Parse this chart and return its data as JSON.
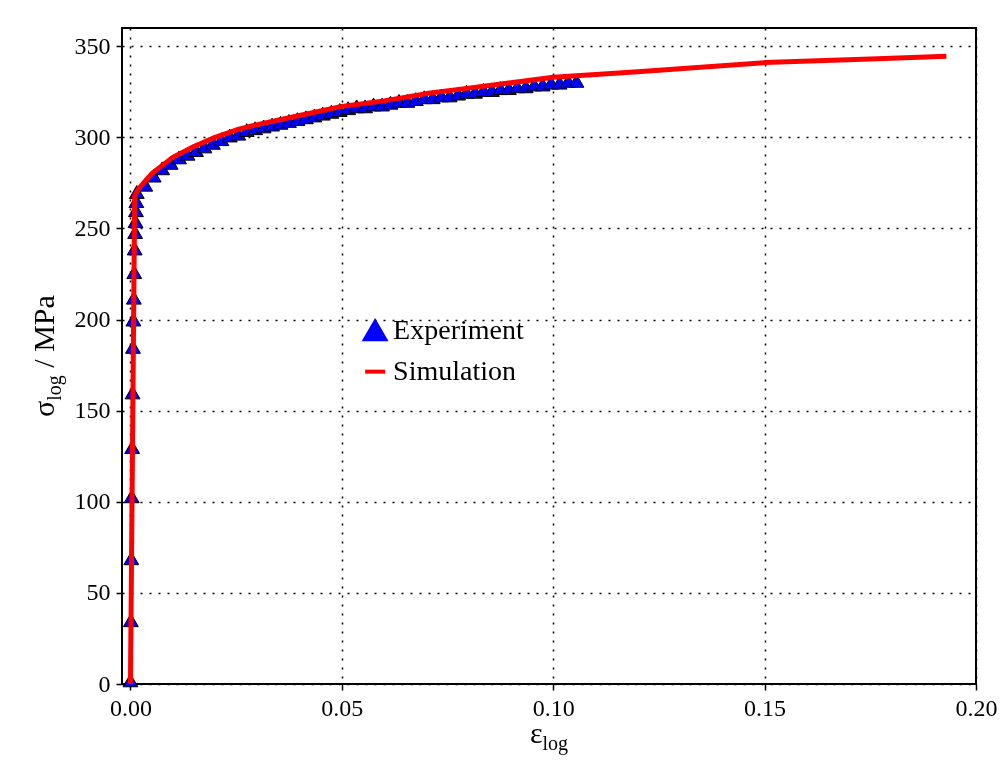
{
  "chart_data": {
    "type": "scatter",
    "xlabel": "ε$_{log}$",
    "ylabel": "σ$_{log}$ / MPa",
    "xlim": [
      -0.002,
      0.2
    ],
    "ylim": [
      0,
      360
    ],
    "xticks": [
      {
        "value": 0,
        "label": "0.00"
      },
      {
        "value": 0.05,
        "label": "0.05"
      },
      {
        "value": 0.1,
        "label": "0.10"
      },
      {
        "value": 0.15,
        "label": "0.15"
      },
      {
        "value": 0.2,
        "label": "0.20"
      }
    ],
    "yticks": [
      0,
      50,
      100,
      150,
      200,
      250,
      300,
      350
    ],
    "grid": true,
    "legend": "center",
    "line_style": "solid",
    "series": [
      {
        "name": "Experiment",
        "marker": "triangle",
        "color": "#0000ff",
        "x": [
          0,
          0.0001,
          0.0002,
          0.0003,
          0.0004,
          0.0005,
          0.0006,
          0.0007,
          0.0008,
          0.0009,
          0.001,
          0.0011,
          0.0012,
          0.0013,
          0.0014,
          0.0015,
          0.0035,
          0.0055,
          0.0075,
          0.0095,
          0.0115,
          0.0135,
          0.0155,
          0.0175,
          0.0195,
          0.0215,
          0.0235,
          0.0255,
          0.0275,
          0.0295,
          0.0315,
          0.0335,
          0.0355,
          0.0375,
          0.0395,
          0.0415,
          0.0435,
          0.0455,
          0.0475,
          0.0495,
          0.0515,
          0.0535,
          0.0555,
          0.0575,
          0.0595,
          0.0615,
          0.0635,
          0.0655,
          0.0675,
          0.0695,
          0.0715,
          0.0735,
          0.0755,
          0.0775,
          0.0795,
          0.0815,
          0.0835,
          0.0855,
          0.0875,
          0.0895,
          0.0915,
          0.0935,
          0.0955,
          0.0975,
          0.0995,
          0.1015,
          0.1035,
          0.1055
        ],
        "values": [
          2,
          35,
          69,
          103,
          130,
          160,
          185,
          200,
          212,
          226,
          239,
          248,
          254,
          260,
          265,
          270,
          274,
          279,
          283,
          286,
          289,
          291,
          293,
          295,
          297,
          299,
          301,
          302,
          304,
          305,
          306,
          307,
          308,
          309,
          310,
          311,
          312,
          313,
          314,
          315,
          316,
          317,
          317,
          318,
          318,
          319,
          320,
          320,
          321,
          322,
          322,
          323,
          323,
          324,
          325,
          325,
          326,
          326,
          327,
          327,
          328,
          328,
          329,
          329,
          330,
          330,
          331,
          331
        ]
      },
      {
        "name": "Simulation",
        "type": "line",
        "color": "#ff0000",
        "x": [
          0,
          0.001,
          0.002,
          0.005,
          0.01,
          0.015,
          0.02,
          0.025,
          0.03,
          0.04,
          0.05,
          0.06,
          0.07,
          0.08,
          0.09,
          0.1,
          0.12,
          0.15,
          0.175,
          0.193
        ],
        "values": [
          0,
          268,
          272,
          280,
          289,
          295,
          300,
          304,
          307,
          312,
          317,
          320,
          324,
          327,
          330,
          333,
          336,
          341,
          343,
          344.5
        ]
      }
    ]
  }
}
